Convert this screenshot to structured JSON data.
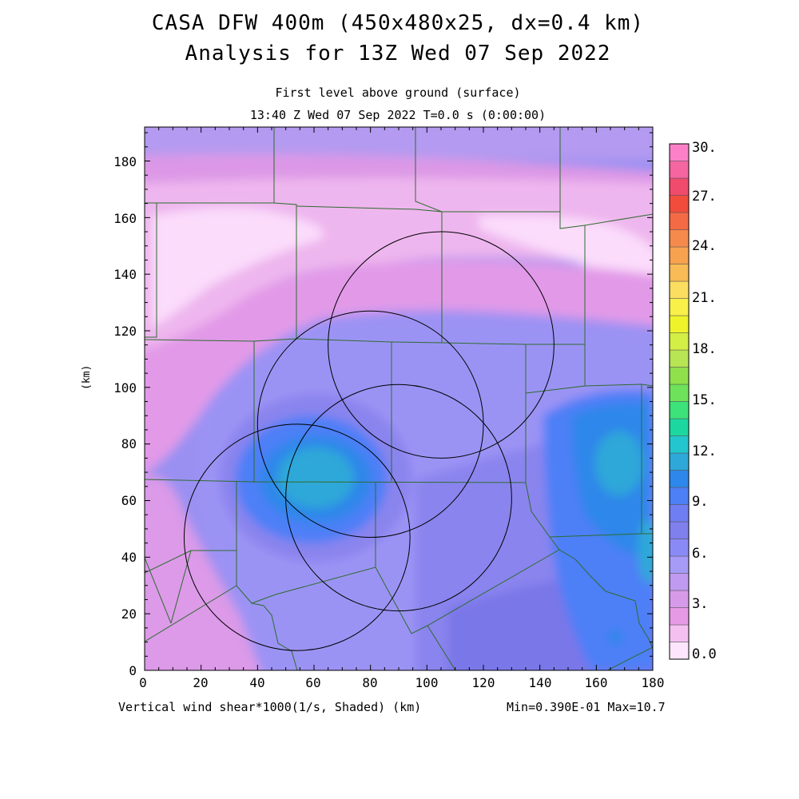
{
  "header": {
    "title_line1": "CASA DFW 400m (450x480x25, dx=0.4 km)",
    "title_line2": "Analysis for 13Z Wed 07 Sep 2022",
    "level": "First level above ground (surface)",
    "time_info": "13:40 Z Wed 07 Sep 2022    T=0.0 s (0:00:00)"
  },
  "axes": {
    "x_ticks": [
      "0",
      "20",
      "40",
      "60",
      "80",
      "100",
      "120",
      "140",
      "160",
      "180"
    ],
    "y_ticks": [
      "0",
      "20",
      "40",
      "60",
      "80",
      "100",
      "120",
      "140",
      "160",
      "180"
    ],
    "y_label": "(km)",
    "x_range_km": [
      0,
      180
    ],
    "y_range_km": [
      0,
      192
    ]
  },
  "footer": {
    "field_label": "Vertical wind shear*1000(1/s, Shaded)  (km)",
    "minmax": "Min=0.390E-01 Max=10.7"
  },
  "colorbar": {
    "labels": [
      "30.",
      "27.",
      "24.",
      "21.",
      "18.",
      "15.",
      "12.",
      "9.",
      "6.",
      "3.",
      "0.0"
    ],
    "colors_bottom_to_top": [
      "#fde6fd",
      "#f4c0f0",
      "#e69ae5",
      "#d79ae9",
      "#c09af0",
      "#a69bf7",
      "#8a8af7",
      "#7f7fee",
      "#6f7ef2",
      "#4d7ff7",
      "#2e87ea",
      "#2da8d8",
      "#24c6ce",
      "#1cd8a0",
      "#3de27a",
      "#6ee25a",
      "#8fe04a",
      "#b8e553",
      "#d3ef45",
      "#eef32a",
      "#f9f04a",
      "#fbde60",
      "#f8bb55",
      "#f7a24f",
      "#f68a4d",
      "#f36a45",
      "#f24c3c",
      "#f04a6c",
      "#f565a0",
      "#fb80c8"
    ]
  },
  "radar_rings": [
    {
      "center_km": [
        105,
        115
      ],
      "radius_km": 40
    },
    {
      "center_km": [
        80,
        87
      ],
      "radius_km": 40
    },
    {
      "center_km": [
        90,
        61
      ],
      "radius_km": 40
    },
    {
      "center_km": [
        54,
        47
      ],
      "radius_km": 40
    }
  ]
}
